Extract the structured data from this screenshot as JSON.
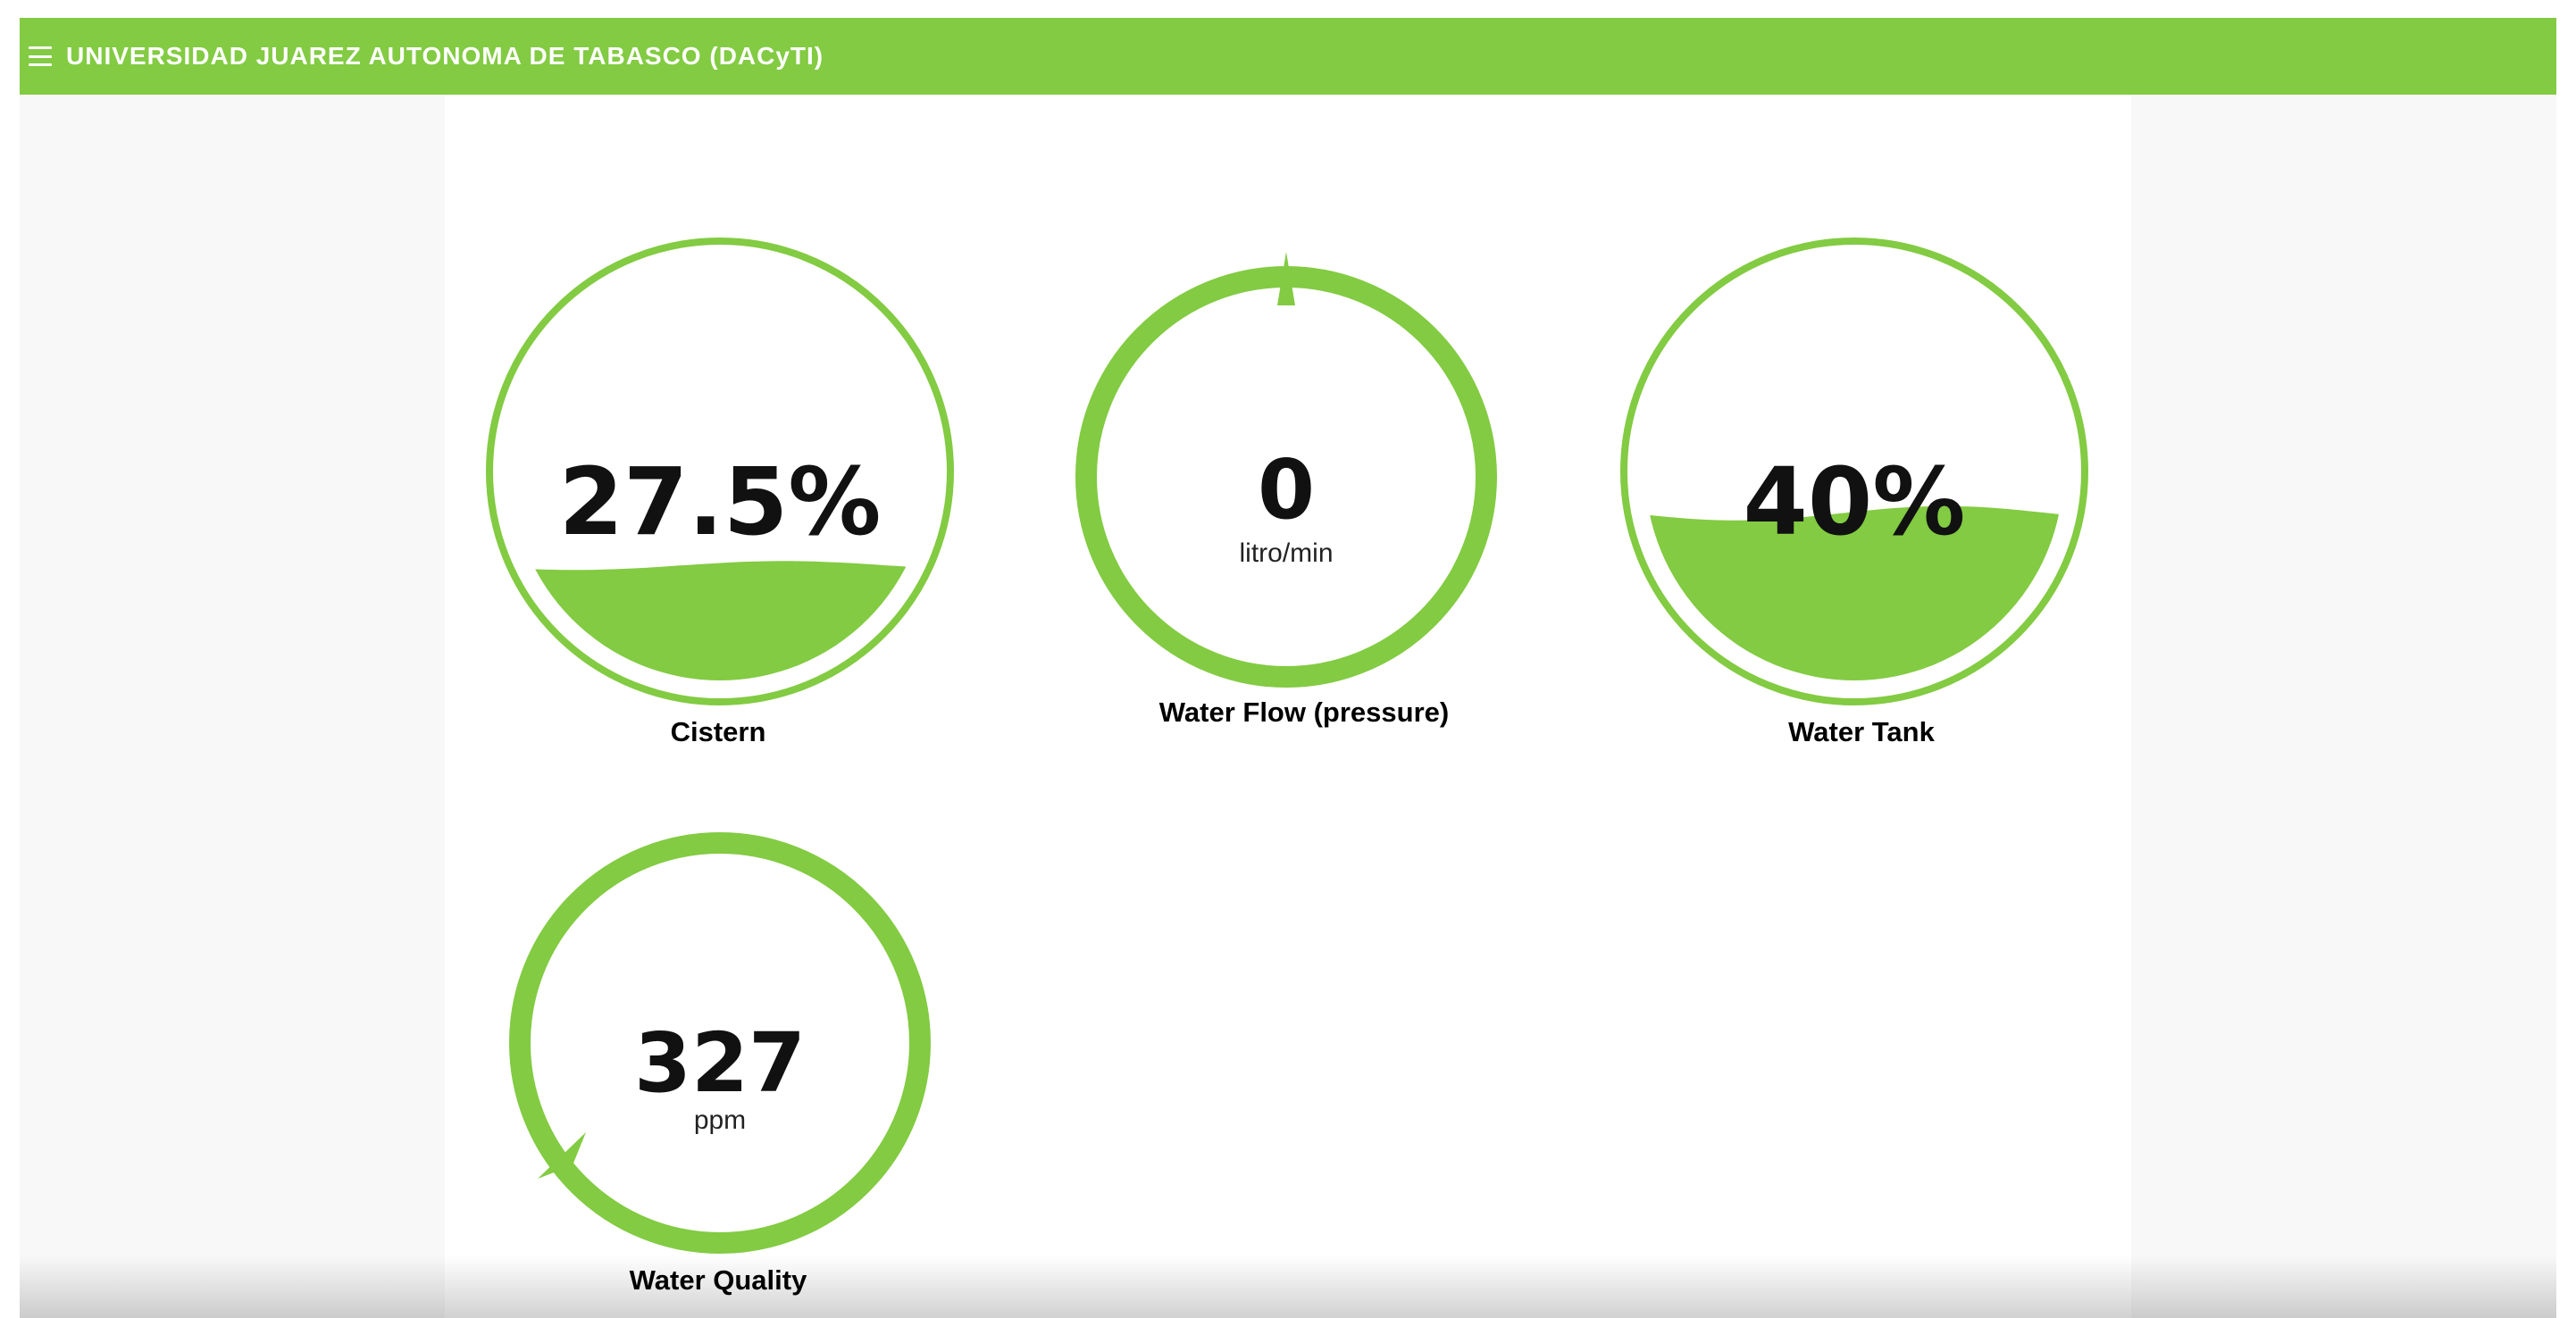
{
  "header": {
    "title": "UNIVERSIDAD JUAREZ AUTONOMA DE TABASCO (DACyTI)",
    "menu_icon": "hamburger-menu-icon",
    "background_color": "#82cb42"
  },
  "accent_color": "#82cb42",
  "gauges": {
    "cistern": {
      "value": "27.5%",
      "level": 0.275,
      "label": "Cistern"
    },
    "water_flow": {
      "value": "0",
      "unit": "litro/min",
      "label": "Water Flow (pressure)"
    },
    "water_tank": {
      "value": "40%",
      "level": 0.4,
      "label": "Water Tank"
    },
    "water_quality": {
      "value": "327",
      "unit": "ppm",
      "label": "Water Quality"
    }
  }
}
